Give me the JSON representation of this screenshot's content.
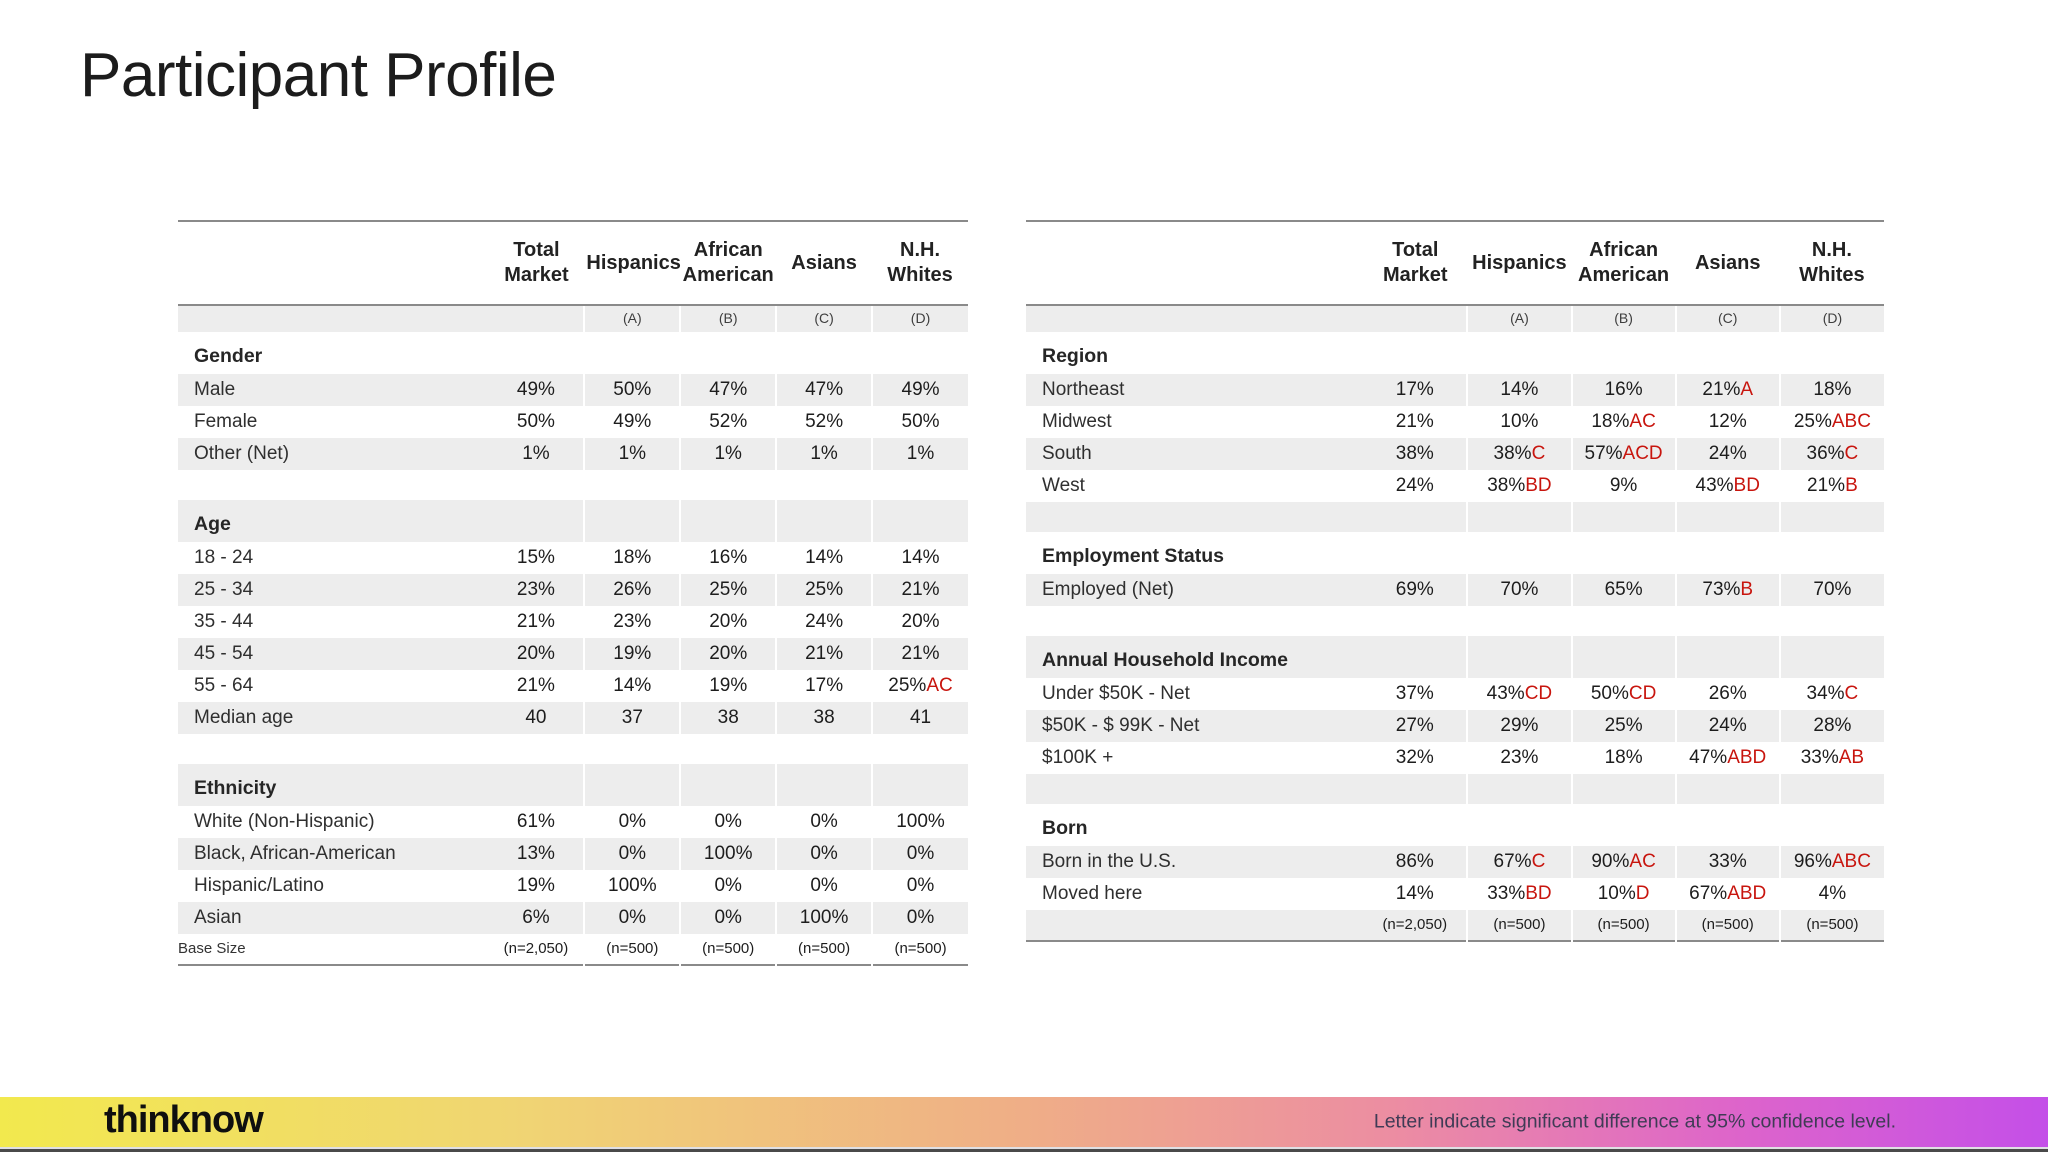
{
  "title": "Participant Profile",
  "colors": {
    "accent_red": "#c8150e",
    "stripe": "#ededed",
    "border_gray": "#8a8a8a",
    "gradient_left": "#f2e94e",
    "gradient_right": "#c44fe8"
  },
  "tables": [
    {
      "name": "left-demographics-table",
      "columns": [
        "Total\nMarket",
        "Hispanics",
        "African\nAmerican",
        "Asians",
        "N.H.\nWhites"
      ],
      "column_letters": [
        "",
        "(A)",
        "(B)",
        "(C)",
        "(D)"
      ],
      "rows": [
        {
          "type": "section",
          "label": "Gender"
        },
        {
          "type": "data",
          "label": "Male",
          "values": [
            [
              "49%",
              ""
            ],
            [
              "50%",
              ""
            ],
            [
              "47%",
              ""
            ],
            [
              "47%",
              ""
            ],
            [
              "49%",
              ""
            ]
          ]
        },
        {
          "type": "data",
          "label": "Female",
          "values": [
            [
              "50%",
              ""
            ],
            [
              "49%",
              ""
            ],
            [
              "52%",
              ""
            ],
            [
              "52%",
              ""
            ],
            [
              "50%",
              ""
            ]
          ]
        },
        {
          "type": "data",
          "label": "Other (Net)",
          "values": [
            [
              "1%",
              ""
            ],
            [
              "1%",
              ""
            ],
            [
              "1%",
              ""
            ],
            [
              "1%",
              ""
            ],
            [
              "1%",
              ""
            ]
          ]
        },
        {
          "type": "spacer",
          "label": ""
        },
        {
          "type": "section",
          "label": "Age"
        },
        {
          "type": "data",
          "label": "18 - 24",
          "values": [
            [
              "15%",
              ""
            ],
            [
              "18%",
              ""
            ],
            [
              "16%",
              ""
            ],
            [
              "14%",
              ""
            ],
            [
              "14%",
              ""
            ]
          ]
        },
        {
          "type": "data",
          "label": "25 - 34",
          "values": [
            [
              "23%",
              ""
            ],
            [
              "26%",
              ""
            ],
            [
              "25%",
              ""
            ],
            [
              "25%",
              ""
            ],
            [
              "21%",
              ""
            ]
          ]
        },
        {
          "type": "data",
          "label": "35 - 44",
          "values": [
            [
              "21%",
              ""
            ],
            [
              "23%",
              ""
            ],
            [
              "20%",
              ""
            ],
            [
              "24%",
              ""
            ],
            [
              "20%",
              ""
            ]
          ]
        },
        {
          "type": "data",
          "label": "45 - 54",
          "values": [
            [
              "20%",
              ""
            ],
            [
              "19%",
              ""
            ],
            [
              "20%",
              ""
            ],
            [
              "21%",
              ""
            ],
            [
              "21%",
              ""
            ]
          ]
        },
        {
          "type": "data",
          "label": "55 - 64",
          "values": [
            [
              "21%",
              ""
            ],
            [
              "14%",
              ""
            ],
            [
              "19%",
              ""
            ],
            [
              "17%",
              ""
            ],
            [
              "25%",
              "AC"
            ]
          ]
        },
        {
          "type": "data",
          "label": "Median age",
          "values": [
            [
              "40",
              ""
            ],
            [
              "37",
              ""
            ],
            [
              "38",
              ""
            ],
            [
              "38",
              ""
            ],
            [
              "41",
              ""
            ]
          ]
        },
        {
          "type": "spacer",
          "label": ""
        },
        {
          "type": "section",
          "label": "Ethnicity"
        },
        {
          "type": "data",
          "label": "White (Non-Hispanic)",
          "values": [
            [
              "61%",
              ""
            ],
            [
              "0%",
              ""
            ],
            [
              "0%",
              ""
            ],
            [
              "0%",
              ""
            ],
            [
              "100%",
              ""
            ]
          ]
        },
        {
          "type": "data",
          "label": "Black, African-American",
          "values": [
            [
              "13%",
              ""
            ],
            [
              "0%",
              ""
            ],
            [
              "100%",
              ""
            ],
            [
              "0%",
              ""
            ],
            [
              "0%",
              ""
            ]
          ]
        },
        {
          "type": "data",
          "label": "Hispanic/Latino",
          "values": [
            [
              "19%",
              ""
            ],
            [
              "100%",
              ""
            ],
            [
              "0%",
              ""
            ],
            [
              "0%",
              ""
            ],
            [
              "0%",
              ""
            ]
          ]
        },
        {
          "type": "data",
          "label": "Asian",
          "values": [
            [
              "6%",
              ""
            ],
            [
              "0%",
              ""
            ],
            [
              "0%",
              ""
            ],
            [
              "100%",
              ""
            ],
            [
              "0%",
              ""
            ]
          ]
        },
        {
          "type": "base",
          "label": "Base Size",
          "values": [
            [
              "(n=2,050)",
              ""
            ],
            [
              "(n=500)",
              ""
            ],
            [
              "(n=500)",
              ""
            ],
            [
              "(n=500)",
              ""
            ],
            [
              "(n=500)",
              ""
            ]
          ]
        }
      ]
    },
    {
      "name": "right-demographics-table",
      "columns": [
        "Total\nMarket",
        "Hispanics",
        "African\nAmerican",
        "Asians",
        "N.H.\nWhites"
      ],
      "column_letters": [
        "",
        "(A)",
        "(B)",
        "(C)",
        "(D)"
      ],
      "rows": [
        {
          "type": "section",
          "label": "Region"
        },
        {
          "type": "data",
          "label": "Northeast",
          "values": [
            [
              "17%",
              ""
            ],
            [
              "14%",
              ""
            ],
            [
              "16%",
              ""
            ],
            [
              "21%",
              "A"
            ],
            [
              "18%",
              ""
            ]
          ]
        },
        {
          "type": "data",
          "label": "Midwest",
          "values": [
            [
              "21%",
              ""
            ],
            [
              "10%",
              ""
            ],
            [
              "18%",
              "AC"
            ],
            [
              "12%",
              ""
            ],
            [
              "25%",
              "ABC"
            ]
          ]
        },
        {
          "type": "data",
          "label": "South",
          "values": [
            [
              "38%",
              ""
            ],
            [
              "38%",
              "C"
            ],
            [
              "57%",
              "ACD"
            ],
            [
              "24%",
              ""
            ],
            [
              "36%",
              "C"
            ]
          ]
        },
        {
          "type": "data",
          "label": "West",
          "values": [
            [
              "24%",
              ""
            ],
            [
              "38%",
              "BD"
            ],
            [
              "9%",
              ""
            ],
            [
              "43%",
              "BD"
            ],
            [
              "21%",
              "B"
            ]
          ]
        },
        {
          "type": "spacer",
          "label": ""
        },
        {
          "type": "section",
          "label": "Employment Status"
        },
        {
          "type": "data",
          "label": "Employed (Net)",
          "values": [
            [
              "69%",
              ""
            ],
            [
              "70%",
              ""
            ],
            [
              "65%",
              ""
            ],
            [
              "73%",
              "B"
            ],
            [
              "70%",
              ""
            ]
          ]
        },
        {
          "type": "spacer",
          "label": ""
        },
        {
          "type": "section",
          "label": "Annual Household Income"
        },
        {
          "type": "data",
          "label": "Under $50K - Net",
          "values": [
            [
              "37%",
              ""
            ],
            [
              "43%",
              "CD"
            ],
            [
              "50%",
              "CD"
            ],
            [
              "26%",
              ""
            ],
            [
              "34%",
              "C"
            ]
          ]
        },
        {
          "type": "data",
          "label": "$50K - $ 99K - Net",
          "values": [
            [
              "27%",
              ""
            ],
            [
              "29%",
              ""
            ],
            [
              "25%",
              ""
            ],
            [
              "24%",
              ""
            ],
            [
              "28%",
              ""
            ]
          ]
        },
        {
          "type": "data",
          "label": "$100K +",
          "values": [
            [
              "32%",
              ""
            ],
            [
              "23%",
              ""
            ],
            [
              "18%",
              ""
            ],
            [
              "47%",
              "ABD"
            ],
            [
              "33%",
              "AB"
            ]
          ]
        },
        {
          "type": "spacer",
          "label": ""
        },
        {
          "type": "section",
          "label": "Born"
        },
        {
          "type": "data",
          "label": "Born in the U.S.",
          "values": [
            [
              "86%",
              ""
            ],
            [
              "67%",
              "C"
            ],
            [
              "90%",
              "AC"
            ],
            [
              "33%",
              ""
            ],
            [
              "96%",
              "ABC"
            ]
          ]
        },
        {
          "type": "data",
          "label": "Moved here",
          "values": [
            [
              "14%",
              ""
            ],
            [
              "33%",
              "BD"
            ],
            [
              "10%",
              "D"
            ],
            [
              "67%",
              "ABD"
            ],
            [
              "4%",
              ""
            ]
          ]
        },
        {
          "type": "base",
          "label": "",
          "values": [
            [
              "(n=2,050)",
              ""
            ],
            [
              "(n=500)",
              ""
            ],
            [
              "(n=500)",
              ""
            ],
            [
              "(n=500)",
              ""
            ],
            [
              "(n=500)",
              ""
            ]
          ]
        }
      ]
    }
  ],
  "footer": {
    "logo": "thinknow",
    "note": "Letter indicate significant difference at 95% confidence level."
  }
}
